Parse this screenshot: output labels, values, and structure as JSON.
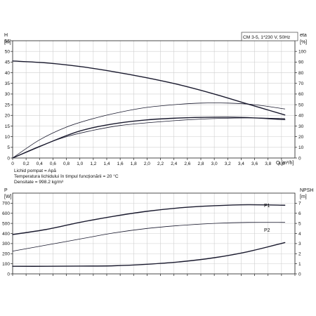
{
  "header": {
    "model": "CM 3-5, 1*230 V, 50Hz",
    "fluid_lines": [
      "Lichid pompat = Apă",
      "Temperatura lichidului în timpul funcționării = 20 °C",
      "Densitate = 998.2 kg/m³"
    ]
  },
  "chart_data": [
    {
      "type": "line",
      "xlabel": "Q [m³/h]",
      "ylabel_left_top": "H",
      "ylabel_left_unit": "[m]",
      "ylabel_right_top": "eta",
      "ylabel_right_unit": "[%]",
      "xlim": [
        0,
        4.2
      ],
      "ylim_left": [
        0,
        55
      ],
      "ylim_right": [
        0,
        110
      ],
      "x_ticks": [
        "0",
        "0,2",
        "0,4",
        "0,6",
        "0,8",
        "1,0",
        "1,2",
        "1,4",
        "1,6",
        "1,8",
        "2,0",
        "2,2",
        "2,4",
        "2,6",
        "2,8",
        "3,0",
        "3,2",
        "3,4",
        "3,6",
        "3,8",
        "4,0"
      ],
      "y_ticks_left": [
        "0",
        "5",
        "10",
        "15",
        "20",
        "25",
        "30",
        "35",
        "40",
        "45",
        "50",
        "55"
      ],
      "y_ticks_right": [
        "0",
        "10",
        "20",
        "30",
        "40",
        "50",
        "60",
        "70",
        "80",
        "90",
        "100"
      ],
      "grid": true,
      "series": [
        {
          "axis": "left",
          "weight": "thick",
          "x": [
            0,
            0.5,
            1.0,
            1.5,
            2.0,
            2.5,
            3.0,
            3.5,
            4.05
          ],
          "y": [
            45.5,
            44.6,
            42.9,
            40.5,
            37.6,
            34.2,
            30.0,
            25.3,
            20.2
          ]
        },
        {
          "axis": "right",
          "weight": "thin",
          "x": [
            0,
            0.4,
            0.8,
            1.2,
            1.6,
            2.0,
            2.4,
            2.8,
            3.2,
            3.6,
            4.05
          ],
          "y": [
            0,
            17,
            29,
            37,
            43,
            47.5,
            50,
            51.5,
            51.5,
            50,
            46
          ]
        },
        {
          "axis": "right",
          "weight": "thick",
          "x": [
            0.0,
            0.8,
            1.2,
            1.6,
            2.0,
            2.4,
            2.8,
            3.2,
            3.6,
            4.05
          ],
          "y": [
            0.0,
            21,
            28.5,
            33,
            35.8,
            37.3,
            38.1,
            38.3,
            37.6,
            36
          ]
        },
        {
          "axis": "right",
          "weight": "thin",
          "x": [
            0,
            0.4,
            0.8,
            1.2,
            1.6,
            2.0,
            2.4,
            2.8,
            3.2,
            3.6,
            4.05
          ],
          "y": [
            0,
            11,
            20,
            26,
            30.5,
            33,
            35,
            36.5,
            37.3,
            37.6,
            37
          ]
        }
      ]
    },
    {
      "type": "line",
      "ylabel_left_top": "P",
      "ylabel_left_unit": "[W]",
      "ylabel_right_top": "NPSH",
      "ylabel_right_unit": "[m]",
      "xlim": [
        0,
        4.2
      ],
      "ylim_left": [
        0,
        800
      ],
      "ylim_right": [
        0,
        8
      ],
      "y_ticks_left": [
        "0",
        "100",
        "200",
        "300",
        "400",
        "500",
        "600",
        "700"
      ],
      "y_ticks_right": [
        "0",
        "1",
        "2",
        "3",
        "4",
        "5",
        "6",
        "7"
      ],
      "grid": true,
      "series": [
        {
          "name": "P1",
          "axis": "left",
          "weight": "thick",
          "x": [
            0,
            0.5,
            1.0,
            1.5,
            2.0,
            2.5,
            3.0,
            3.5,
            4.05
          ],
          "y": [
            390,
            440,
            510,
            570,
            620,
            655,
            675,
            685,
            680
          ]
        },
        {
          "name": "P2",
          "axis": "left",
          "weight": "thin",
          "x": [
            0,
            0.5,
            1.0,
            1.5,
            2.0,
            2.5,
            3.0,
            3.5,
            4.05
          ],
          "y": [
            225,
            285,
            345,
            405,
            450,
            480,
            500,
            510,
            510
          ]
        },
        {
          "axis": "right",
          "weight": "thick",
          "x": [
            0,
            0.5,
            1.0,
            1.5,
            2.0,
            2.5,
            3.0,
            3.5,
            4.05
          ],
          "y": [
            0.75,
            0.75,
            0.77,
            0.8,
            0.95,
            1.2,
            1.6,
            2.2,
            3.1
          ]
        }
      ]
    }
  ]
}
